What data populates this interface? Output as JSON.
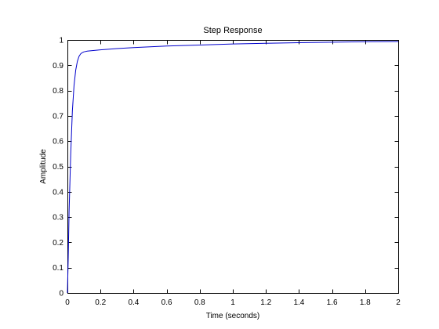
{
  "chart_data": {
    "type": "line",
    "title": "Step Response",
    "xlabel": "Time (seconds)",
    "ylabel": "Amplitude",
    "xlim": [
      0,
      2
    ],
    "ylim": [
      0,
      1
    ],
    "grid": false,
    "legend": "none",
    "x_ticks": [
      0,
      0.2,
      0.4,
      0.6,
      0.8,
      1,
      1.2,
      1.4,
      1.6,
      1.8,
      2
    ],
    "x_tick_labels": [
      "0",
      "0.2",
      "0.4",
      "0.6",
      "0.8",
      "1",
      "1.2",
      "1.4",
      "1.6",
      "1.8",
      "2"
    ],
    "y_ticks": [
      0,
      0.1,
      0.2,
      0.3,
      0.4,
      0.5,
      0.6,
      0.7,
      0.8,
      0.9,
      1
    ],
    "y_tick_labels": [
      "0",
      "0.1",
      "0.2",
      "0.3",
      "0.4",
      "0.5",
      "0.6",
      "0.7",
      "0.8",
      "0.9",
      "1"
    ],
    "series": [
      {
        "color": "#0000cc",
        "x": [
          0,
          0.005,
          0.01,
          0.02,
          0.03,
          0.04,
          0.05,
          0.06,
          0.07,
          0.08,
          0.09,
          0.1,
          0.12,
          0.15,
          0.2,
          0.3,
          0.4,
          0.5,
          0.6,
          0.8,
          1.0,
          1.2,
          1.4,
          1.6,
          1.8,
          2.0
        ],
        "y": [
          0,
          0.14,
          0.32,
          0.55,
          0.72,
          0.82,
          0.88,
          0.915,
          0.935,
          0.945,
          0.95,
          0.953,
          0.956,
          0.958,
          0.961,
          0.966,
          0.97,
          0.973,
          0.976,
          0.98,
          0.984,
          0.987,
          0.989,
          0.991,
          0.993,
          0.994
        ]
      }
    ]
  },
  "colors": {
    "background": "#ffffff",
    "axes": "#000000",
    "line": "#0000cc"
  }
}
